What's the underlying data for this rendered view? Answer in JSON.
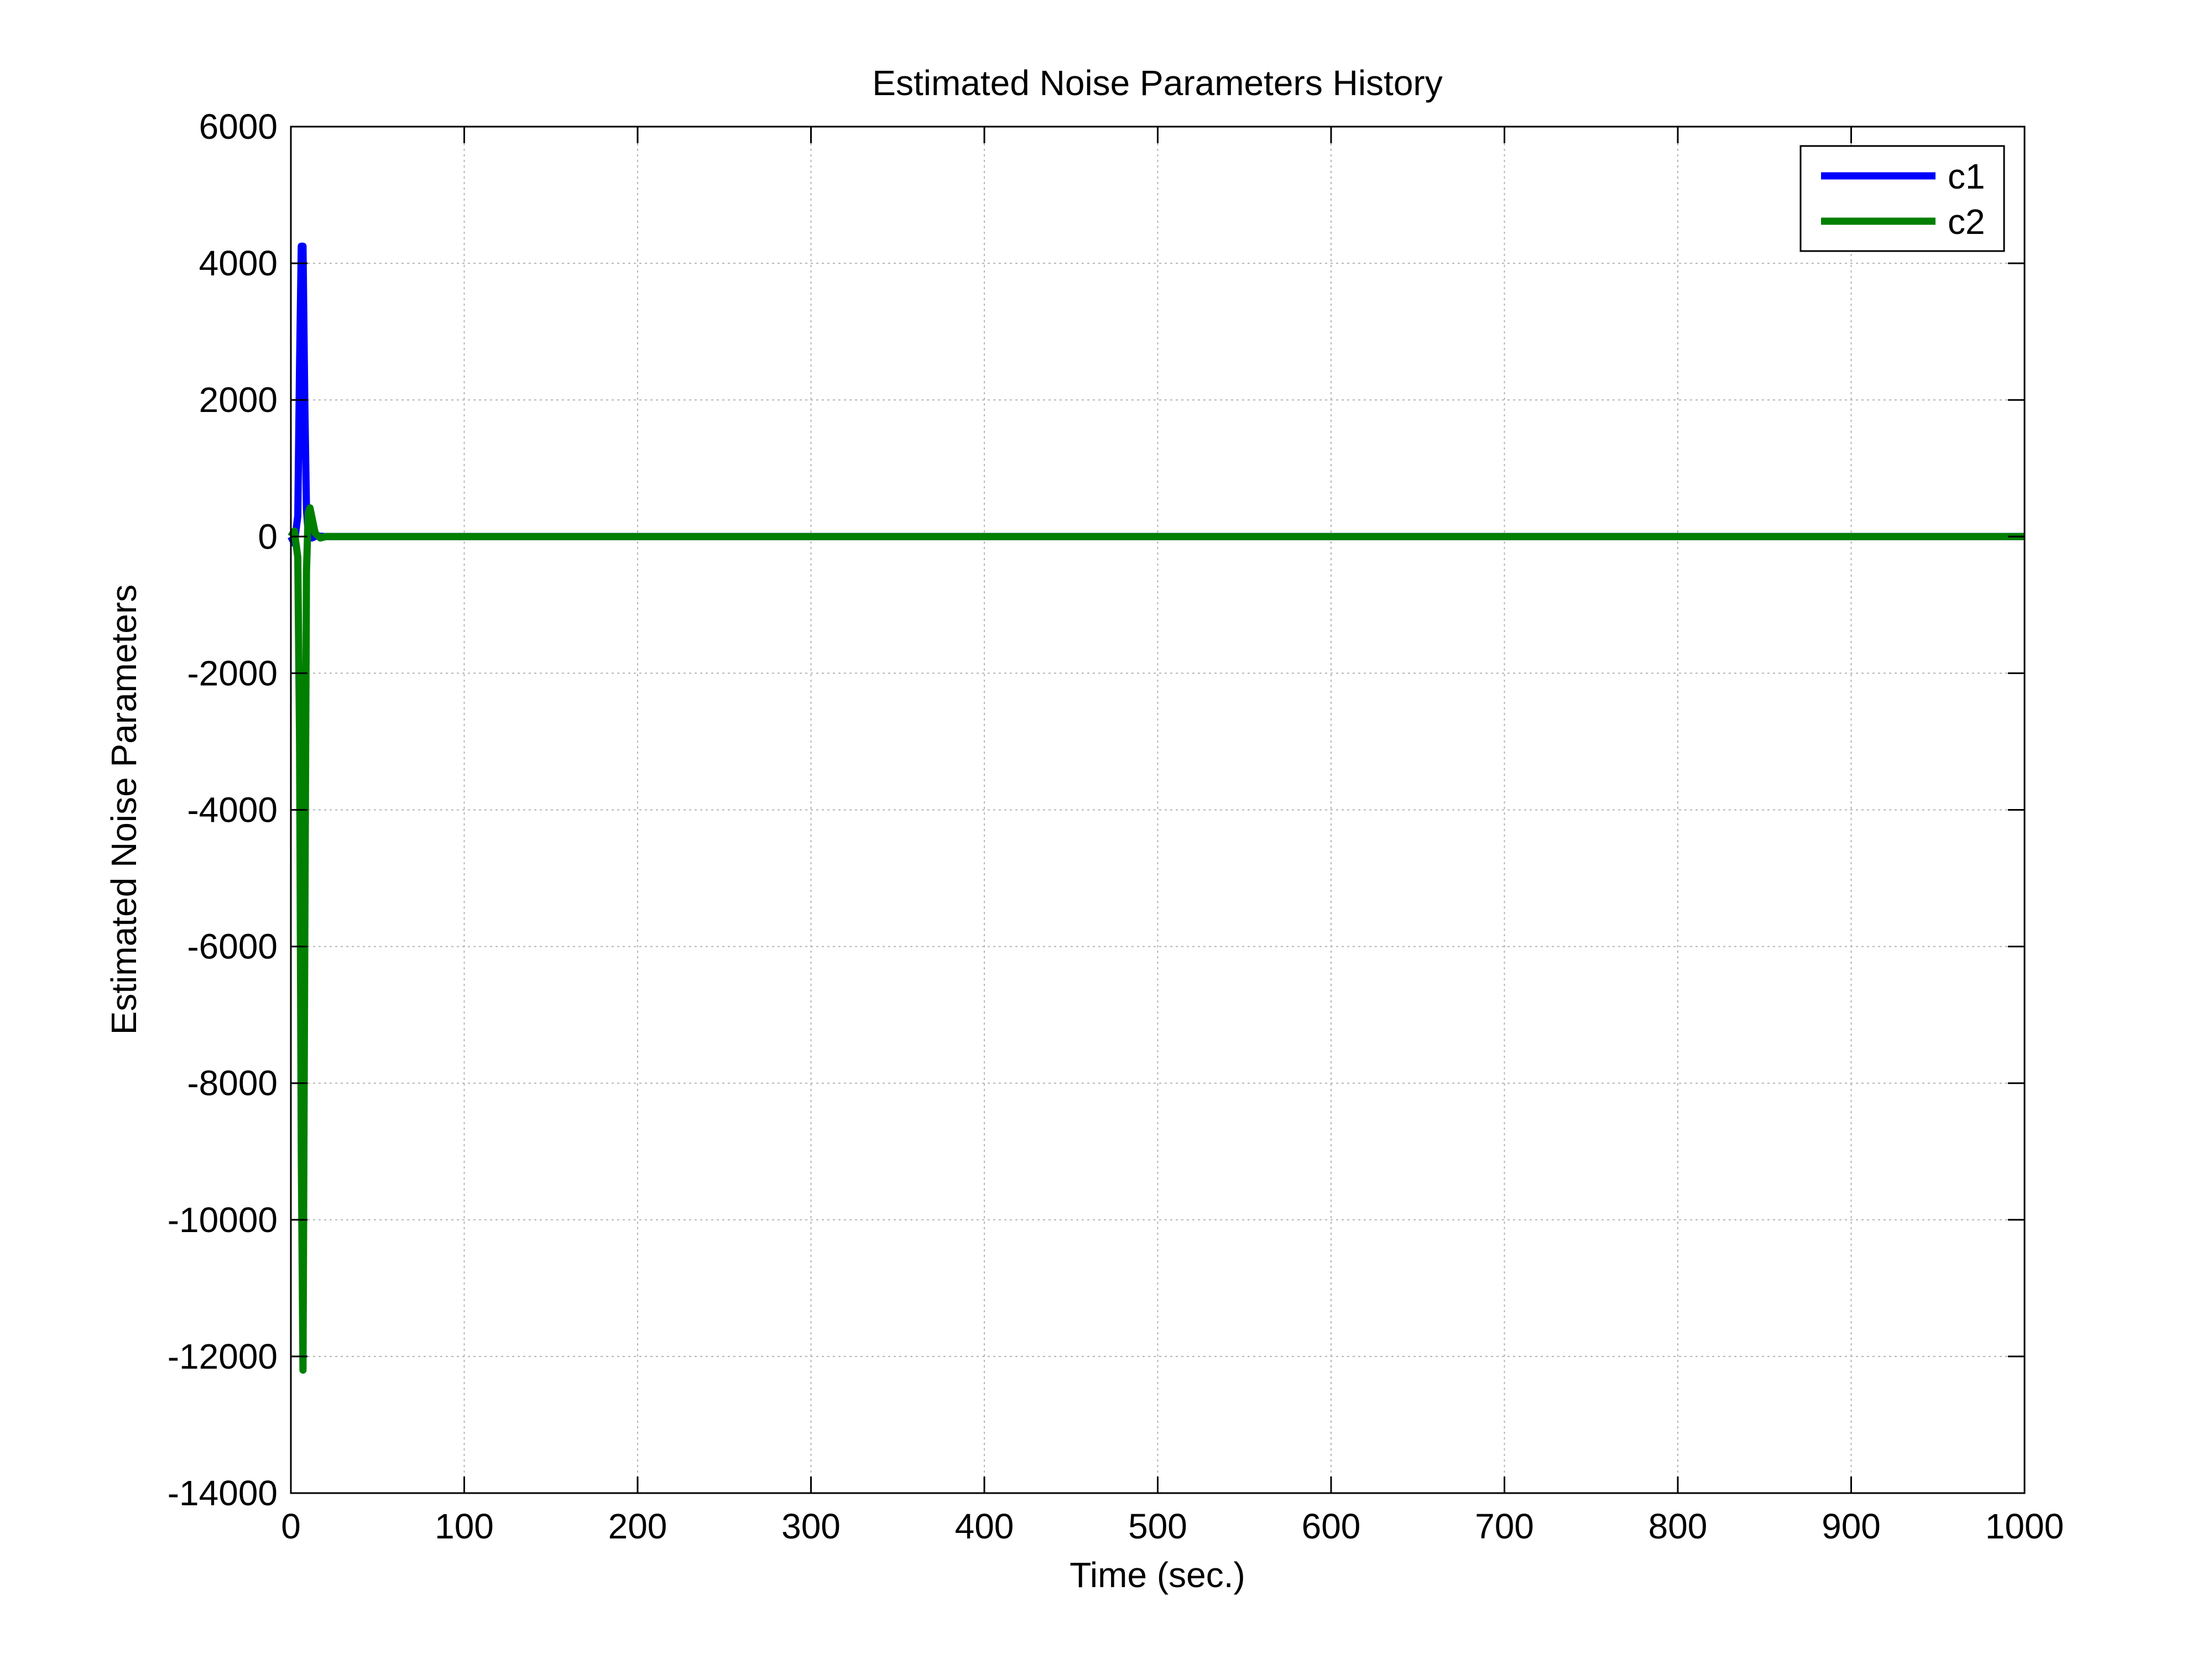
{
  "chart_data": {
    "type": "line",
    "title": "Estimated Noise Parameters History",
    "xlabel": "Time (sec.)",
    "ylabel": "Estimated Noise Parameters",
    "xlim": [
      0,
      1000
    ],
    "ylim": [
      -14000,
      6000
    ],
    "xticks": [
      0,
      100,
      200,
      300,
      400,
      500,
      600,
      700,
      800,
      900,
      1000
    ],
    "yticks": [
      6000,
      4000,
      2000,
      0,
      -2000,
      -4000,
      -6000,
      -8000,
      -10000,
      -12000,
      -14000
    ],
    "grid": true,
    "legend_position": "top-right",
    "series": [
      {
        "name": "c1",
        "color": "#0000ff",
        "x": [
          0,
          2,
          4,
          5,
          6,
          7,
          8,
          9,
          10,
          12,
          15,
          20,
          50,
          100,
          200,
          300,
          400,
          500,
          600,
          700,
          800,
          900,
          1000
        ],
        "y": [
          0,
          -100,
          300,
          2500,
          4250,
          4250,
          2000,
          400,
          50,
          -20,
          10,
          0,
          0,
          0,
          0,
          0,
          0,
          0,
          0,
          0,
          0,
          0,
          0
        ]
      },
      {
        "name": "c2",
        "color": "#007f00",
        "x": [
          0,
          2,
          4,
          5,
          6,
          7,
          8,
          9,
          10,
          11,
          12,
          14,
          17,
          20,
          50,
          100,
          200,
          300,
          400,
          500,
          600,
          700,
          800,
          900,
          1000
        ],
        "y": [
          0,
          80,
          -300,
          -3000,
          -9000,
          -12200,
          -6000,
          -500,
          350,
          420,
          300,
          50,
          -20,
          0,
          0,
          0,
          0,
          0,
          0,
          0,
          0,
          0,
          0,
          0,
          0
        ]
      }
    ]
  }
}
